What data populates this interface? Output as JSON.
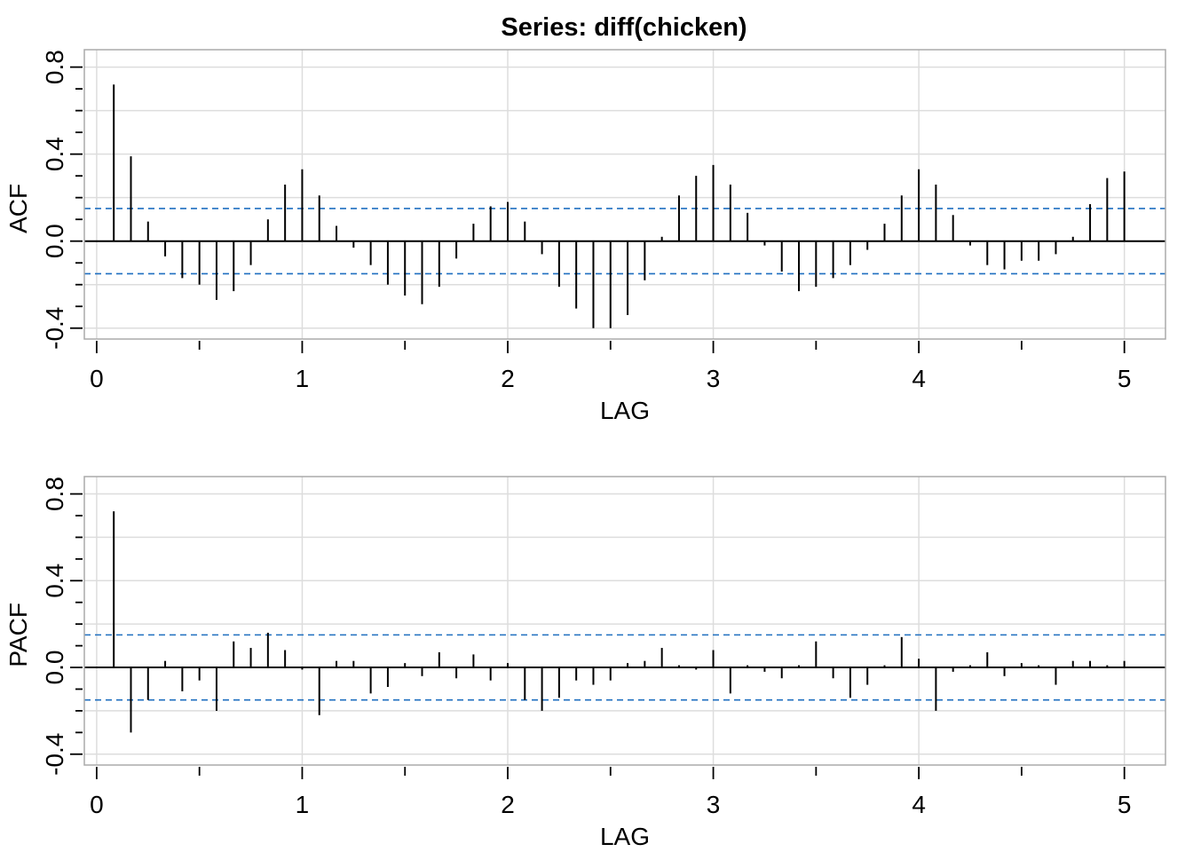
{
  "chart_data": [
    {
      "type": "bar",
      "title": "Series:  diff(chicken)",
      "xlabel": "LAG",
      "ylabel": "ACF",
      "xlim": [
        -0.06,
        5.2
      ],
      "ylim": [
        -0.45,
        0.88
      ],
      "x_ticks": [
        0,
        1,
        2,
        3,
        4,
        5
      ],
      "x_tick_labels": [
        "0",
        "1",
        "2",
        "3",
        "4",
        "5"
      ],
      "y_ticks": [
        -0.4,
        0.0,
        0.4,
        0.8
      ],
      "y_tick_labels": [
        "-0.4",
        "0.0",
        "0.4",
        "0.8"
      ],
      "grid": true,
      "ci": 0.15,
      "colors": {
        "bars": "#000000",
        "ci": "#1f6fc0",
        "grid": "#dddddd",
        "frame": "#aaaaaa"
      },
      "lag_step": 0.08333,
      "values": [
        0.72,
        0.39,
        0.09,
        -0.07,
        -0.17,
        -0.2,
        -0.27,
        -0.23,
        -0.11,
        0.1,
        0.26,
        0.33,
        0.21,
        0.07,
        -0.03,
        -0.11,
        -0.2,
        -0.25,
        -0.29,
        -0.21,
        -0.08,
        0.08,
        0.16,
        0.18,
        0.09,
        -0.06,
        -0.21,
        -0.31,
        -0.4,
        -0.4,
        -0.34,
        -0.18,
        0.02,
        0.21,
        0.3,
        0.35,
        0.26,
        0.13,
        -0.02,
        -0.14,
        -0.23,
        -0.21,
        -0.17,
        -0.11,
        -0.04,
        0.08,
        0.21,
        0.33,
        0.26,
        0.12,
        -0.02,
        -0.11,
        -0.13,
        -0.09,
        -0.09,
        -0.06,
        0.02,
        0.17,
        0.29,
        0.32
      ]
    },
    {
      "type": "bar",
      "xlabel": "LAG",
      "ylabel": "PACF",
      "xlim": [
        -0.06,
        5.2
      ],
      "ylim": [
        -0.45,
        0.88
      ],
      "x_ticks": [
        0,
        1,
        2,
        3,
        4,
        5
      ],
      "x_tick_labels": [
        "0",
        "1",
        "2",
        "3",
        "4",
        "5"
      ],
      "y_ticks": [
        -0.4,
        0.0,
        0.4,
        0.8
      ],
      "y_tick_labels": [
        "-0.4",
        "0.0",
        "0.4",
        "0.8"
      ],
      "grid": true,
      "ci": 0.15,
      "colors": {
        "bars": "#000000",
        "ci": "#1f6fc0",
        "grid": "#dddddd",
        "frame": "#aaaaaa"
      },
      "lag_step": 0.08333,
      "values": [
        0.72,
        -0.3,
        -0.15,
        0.03,
        -0.11,
        -0.06,
        -0.2,
        0.12,
        0.09,
        0.16,
        0.08,
        -0.01,
        -0.22,
        0.03,
        0.03,
        -0.12,
        -0.09,
        0.02,
        -0.04,
        0.07,
        -0.05,
        0.06,
        -0.06,
        0.02,
        -0.15,
        -0.2,
        -0.14,
        -0.06,
        -0.08,
        -0.06,
        0.02,
        0.03,
        0.09,
        0.01,
        -0.01,
        0.08,
        -0.12,
        0.01,
        -0.02,
        -0.05,
        0.01,
        0.12,
        -0.05,
        -0.14,
        -0.08,
        0.01,
        0.14,
        0.04,
        -0.2,
        -0.02,
        0.01,
        0.07,
        -0.04,
        0.02,
        0.01,
        -0.08,
        0.03,
        0.03,
        0.01,
        0.03
      ]
    }
  ]
}
